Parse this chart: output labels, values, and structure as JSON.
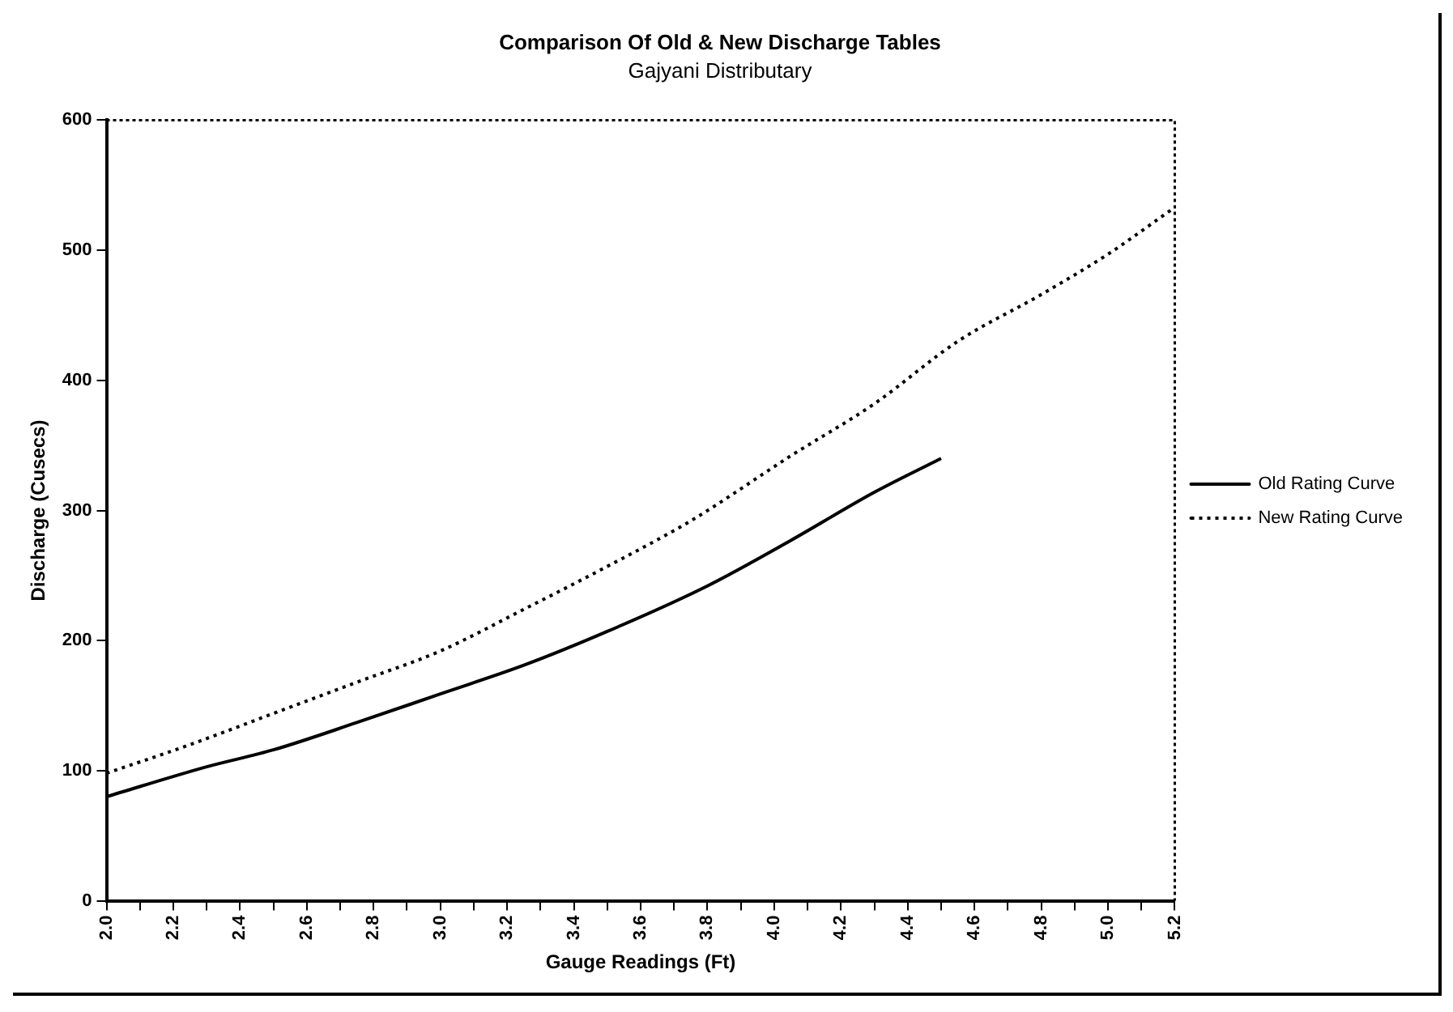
{
  "chart_data": {
    "type": "line",
    "title": "Comparison Of Old & New Discharge Tables",
    "subtitle": "Gajyani Distributary",
    "xlabel": "Gauge Readings (Ft)",
    "ylabel": "Discharge (Cusecs)",
    "series": [
      {
        "name": "Old Rating Curve",
        "color": "#000000",
        "line_style": "solid",
        "x": [
          2.0,
          2.3,
          2.5,
          2.75,
          3.0,
          3.25,
          3.5,
          3.8,
          4.05,
          4.3,
          4.5
        ],
        "values": [
          80,
          103,
          116,
          137,
          159,
          181,
          207,
          242,
          277,
          314,
          340
        ]
      },
      {
        "name": "New Rating Curve",
        "color": "#000000",
        "line_style": "dotted",
        "x": [
          2.0,
          2.25,
          2.5,
          2.75,
          3.0,
          3.25,
          3.5,
          3.75,
          4.05,
          4.3,
          4.55,
          4.8,
          5.0,
          5.2
        ],
        "values": [
          98,
          120,
          144,
          168,
          192,
          224,
          257,
          292,
          342,
          382,
          430,
          466,
          497,
          533
        ]
      }
    ],
    "xlim": [
      2.0,
      5.2
    ],
    "xticks": [
      {
        "value": 2,
        "label": "2.0"
      },
      {
        "value": 2.1,
        "label": null
      },
      2.2,
      {
        "value": 2.3,
        "label": null
      },
      2.4,
      {
        "value": 2.5,
        "label": null
      },
      2.6,
      {
        "value": 2.7,
        "label": null
      },
      2.8,
      {
        "value": 2.9,
        "label": null
      },
      {
        "value": 3,
        "label": "3.0"
      },
      {
        "value": 3.1,
        "label": null
      },
      3.2,
      {
        "value": 3.3,
        "label": null
      },
      3.4,
      {
        "value": 3.5,
        "label": null
      },
      3.6,
      {
        "value": 3.7,
        "label": null
      },
      3.8,
      {
        "value": 3.9,
        "label": null
      },
      {
        "value": 4,
        "label": "4.0"
      },
      {
        "value": 4.1,
        "label": null
      },
      4.2,
      {
        "value": 4.3,
        "label": null
      },
      4.4,
      {
        "value": 4.5,
        "label": null
      },
      4.6,
      {
        "value": 4.7,
        "label": null
      },
      4.8,
      {
        "value": 4.9,
        "label": null
      },
      {
        "value": 5,
        "label": "5.0"
      },
      {
        "value": 5.1,
        "label": null
      },
      5.2
    ],
    "ylim": [
      0,
      600
    ],
    "yticks": [
      0,
      100,
      200,
      300,
      400,
      500,
      600
    ],
    "grid": false,
    "legend": "right",
    "marker": "none"
  }
}
